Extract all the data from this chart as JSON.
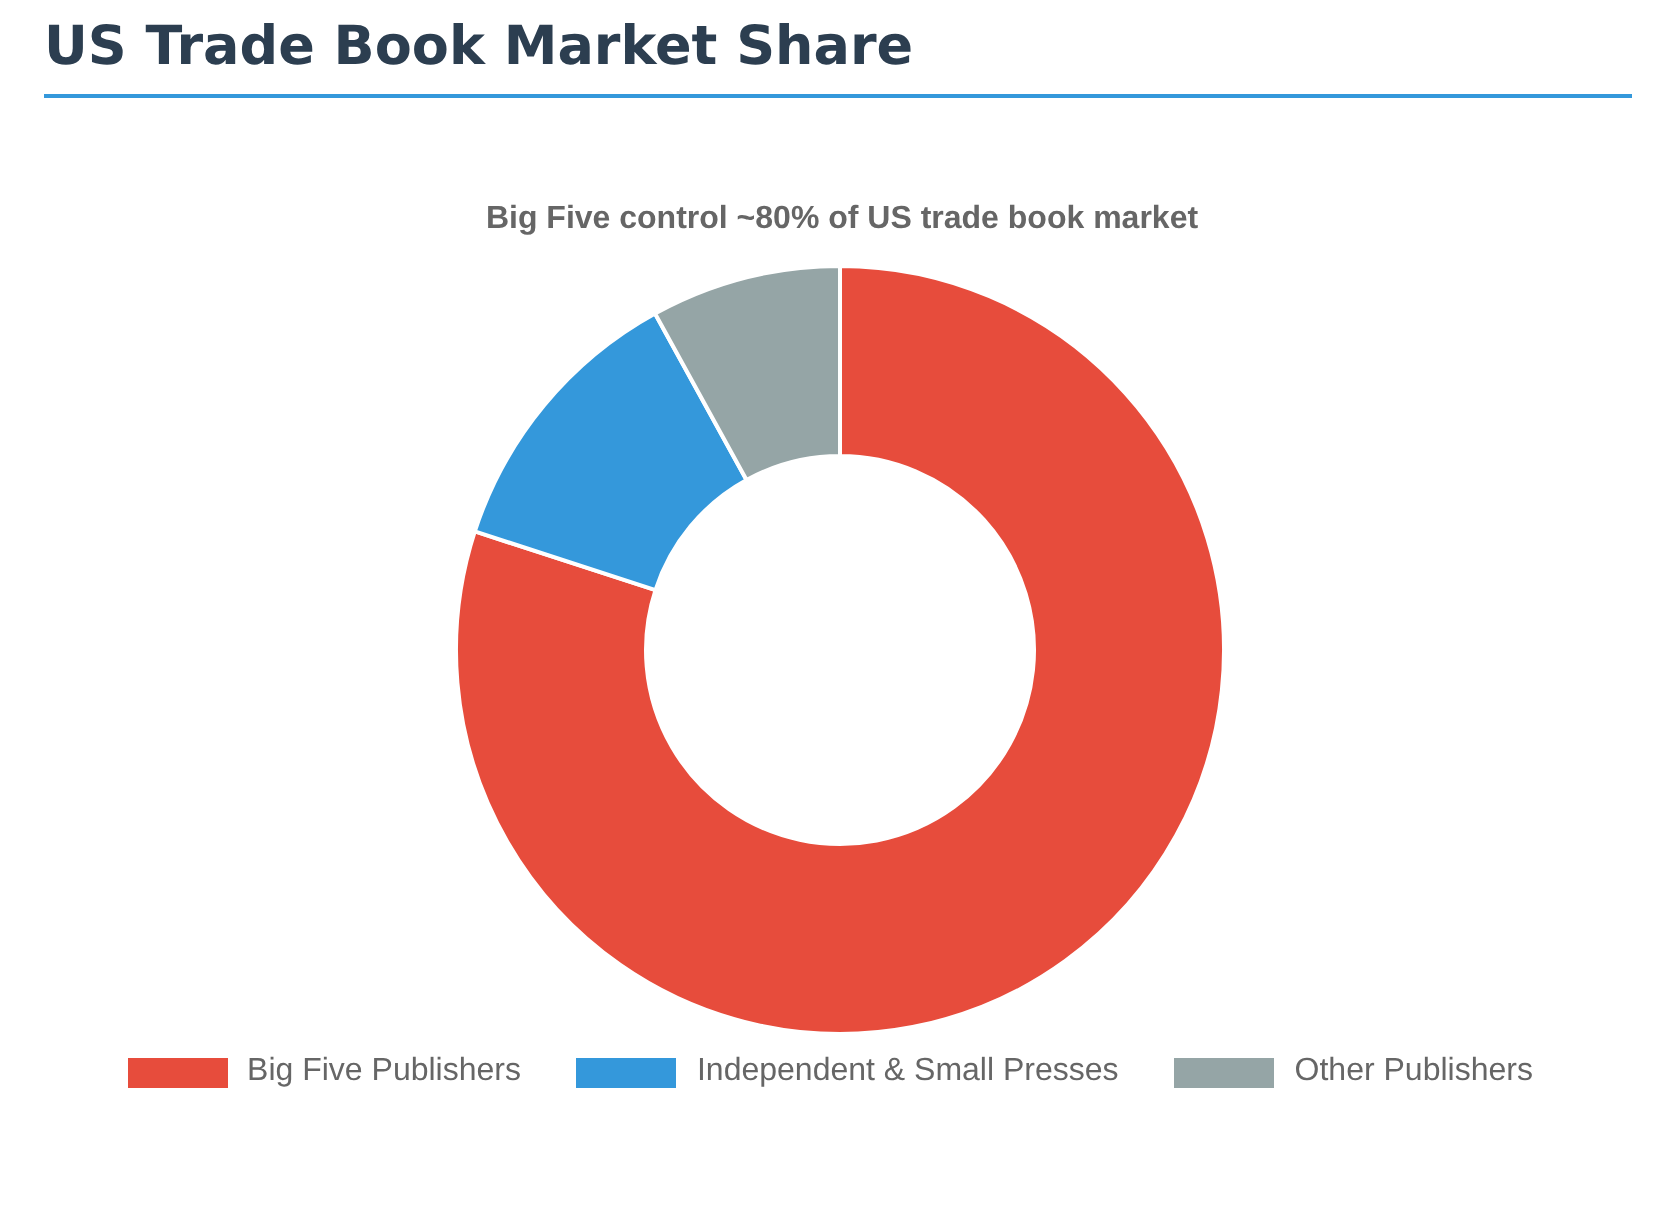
{
  "chart_data": {
    "type": "donut",
    "title": "US Trade Book Market Share",
    "subtitle": "Big Five control ~80% of US trade book market",
    "categories": [
      "Big Five Publishers",
      "Independent & Small Presses",
      "Other Publishers"
    ],
    "values": [
      80,
      12,
      8
    ],
    "colors": [
      "#e74c3c",
      "#3498db",
      "#95a5a6"
    ],
    "legend": "bottom"
  }
}
